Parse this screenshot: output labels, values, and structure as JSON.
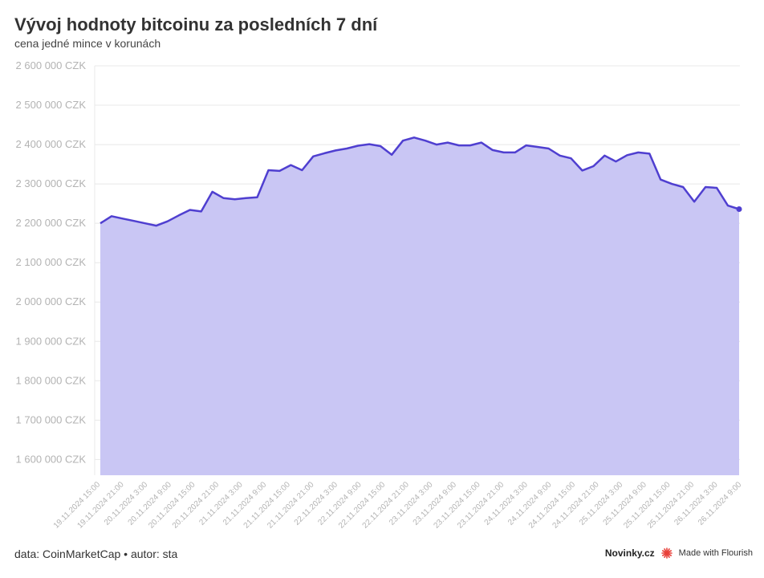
{
  "header": {
    "title": "Vývoj hodnoty bitcoinu za posledních 7 dní",
    "subtitle": "cena jedné mince v korunách"
  },
  "footer": {
    "source": "data: CoinMarketCap • autor: sta",
    "brand": "Novinky.cz",
    "made_with": "Made with Flourish"
  },
  "colors": {
    "line": "#4f3fd0",
    "area": "#c9c6f4",
    "grid": "#e8e8e8",
    "tick": "#b3b3b3",
    "flourish_icon": "#e8413a"
  },
  "chart_data": {
    "type": "area",
    "title": "Vývoj hodnoty bitcoinu za posledních 7 dní",
    "subtitle": "cena jedné mince v korunách",
    "ylim": [
      1560000,
      2600000
    ],
    "yticks": [
      1600000,
      1700000,
      1800000,
      1900000,
      2000000,
      2100000,
      2200000,
      2300000,
      2400000,
      2500000,
      2600000
    ],
    "ytick_labels": [
      "1 600 000 CZK",
      "1 700 000 CZK",
      "1 800 000 CZK",
      "1 900 000 CZK",
      "2 000 000 CZK",
      "2 100 000 CZK",
      "2 200 000 CZK",
      "2 300 000 CZK",
      "2 400 000 CZK",
      "2 500 000 CZK",
      "2 600 000 CZK"
    ],
    "xtick_labels": [
      "19.11.2024 15:00",
      "19.11.2024 21:00",
      "20.11.2024 3:00",
      "20.11.2024 9:00",
      "20.11.2024 15:00",
      "20.11.2024 21:00",
      "21.11.2024 3:00",
      "21.11.2024 9:00",
      "21.11.2024 15:00",
      "21.11.2024 21:00",
      "22.11.2024 3:00",
      "22.11.2024 9:00",
      "22.11.2024 15:00",
      "22.11.2024 21:00",
      "23.11.2024 3:00",
      "23.11.2024 9:00",
      "23.11.2024 15:00",
      "23.11.2024 21:00",
      "24.11.2024 3:00",
      "24.11.2024 9:00",
      "24.11.2024 15:00",
      "24.11.2024 21:00",
      "25.11.2024 3:00",
      "25.11.2024 9:00",
      "25.11.2024 15:00",
      "25.11.2024 21:00",
      "26.11.2024 3:00",
      "26.11.2024 9:00"
    ],
    "grid": true,
    "series": [
      {
        "values": [
          2200000,
          2218000,
          2212000,
          2206000,
          2200000,
          2194000,
          2205000,
          2220000,
          2234000,
          2230000,
          2280000,
          2264000,
          2261000,
          2264000,
          2266000,
          2335000,
          2333000,
          2348000,
          2335000,
          2370000,
          2378000,
          2385000,
          2390000,
          2397000,
          2401000,
          2396000,
          2374000,
          2410000,
          2418000,
          2410000,
          2400000,
          2405000,
          2398000,
          2398000,
          2405000,
          2386000,
          2380000,
          2380000,
          2398000,
          2394000,
          2390000,
          2372000,
          2365000,
          2334000,
          2345000,
          2372000,
          2357000,
          2373000,
          2380000,
          2377000,
          2311000,
          2300000,
          2292000,
          2255000,
          2292000,
          2290000,
          2245000,
          2236000
        ]
      }
    ]
  }
}
